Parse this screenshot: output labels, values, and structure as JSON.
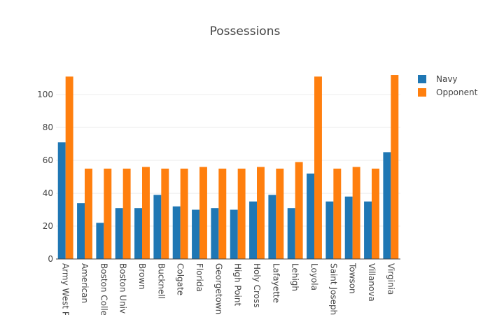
{
  "chart_data": {
    "type": "bar",
    "title": "Possessions",
    "xlabel": "",
    "ylabel": "",
    "ylim": [
      0,
      115
    ],
    "yticks": [
      0,
      20,
      40,
      60,
      80,
      100
    ],
    "grid": true,
    "legend_position": "top-right",
    "categories": [
      "Army West P",
      "American",
      "Boston Colle",
      "Boston Univ",
      "Brown",
      "Bucknell",
      "Colgate",
      "Florida",
      "Georgetown",
      "High Point",
      "Holy Cross",
      "Lafayette",
      "Lehigh",
      "Loyola",
      "Saint Joseph",
      "Towson",
      "Villanova",
      "Virginia"
    ],
    "series": [
      {
        "name": "Navy",
        "color": "#1f77b4",
        "values": [
          71,
          34,
          22,
          31,
          31,
          39,
          32,
          30,
          31,
          30,
          35,
          39,
          31,
          52,
          35,
          38,
          35,
          65
        ]
      },
      {
        "name": "Opponent",
        "color": "#ff7f0e",
        "values": [
          111,
          55,
          55,
          55,
          56,
          55,
          55,
          56,
          55,
          55,
          56,
          55,
          59,
          111,
          55,
          56,
          55,
          112
        ]
      }
    ]
  }
}
